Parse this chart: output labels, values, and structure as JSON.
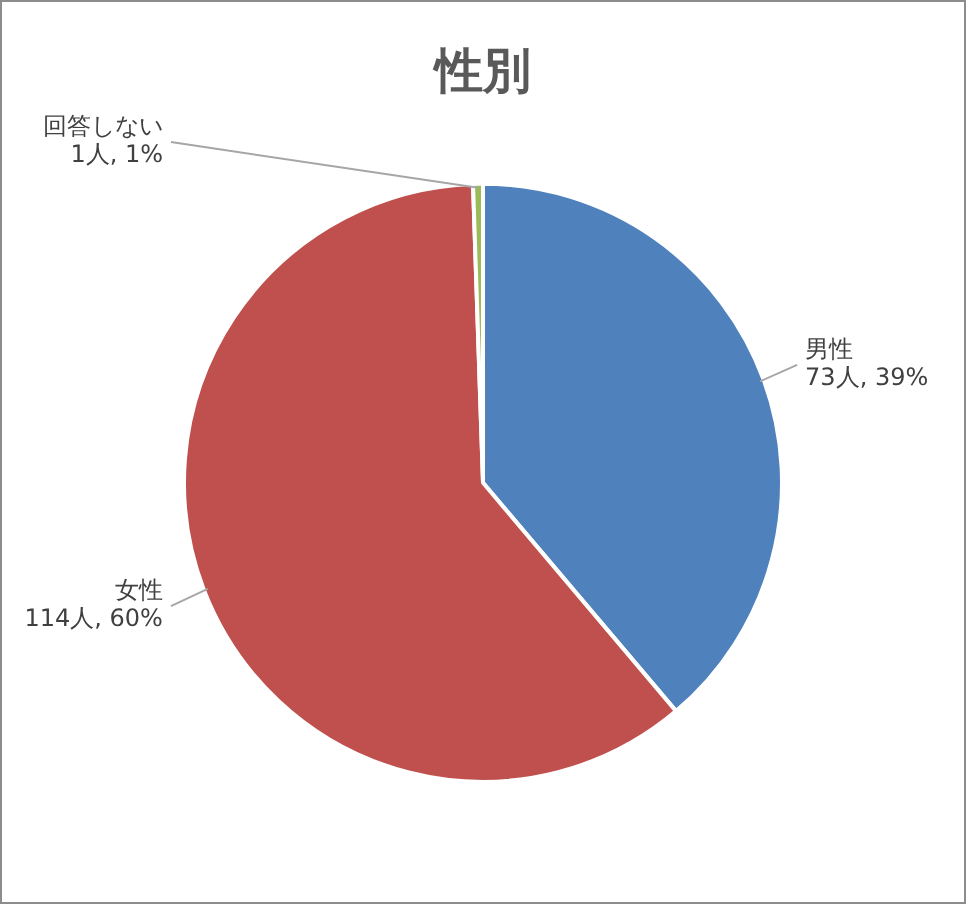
{
  "chart_data": {
    "type": "pie",
    "title": "性別",
    "categories": [
      "男性",
      "女性",
      "回答しない"
    ],
    "values": [
      73,
      114,
      1
    ],
    "colors": [
      "#4f81bd",
      "#c0504d",
      "#9bbb59"
    ],
    "value_labels": [
      "73人, 39%",
      "114人, 60%",
      "1人, 1%"
    ],
    "legend": false
  }
}
